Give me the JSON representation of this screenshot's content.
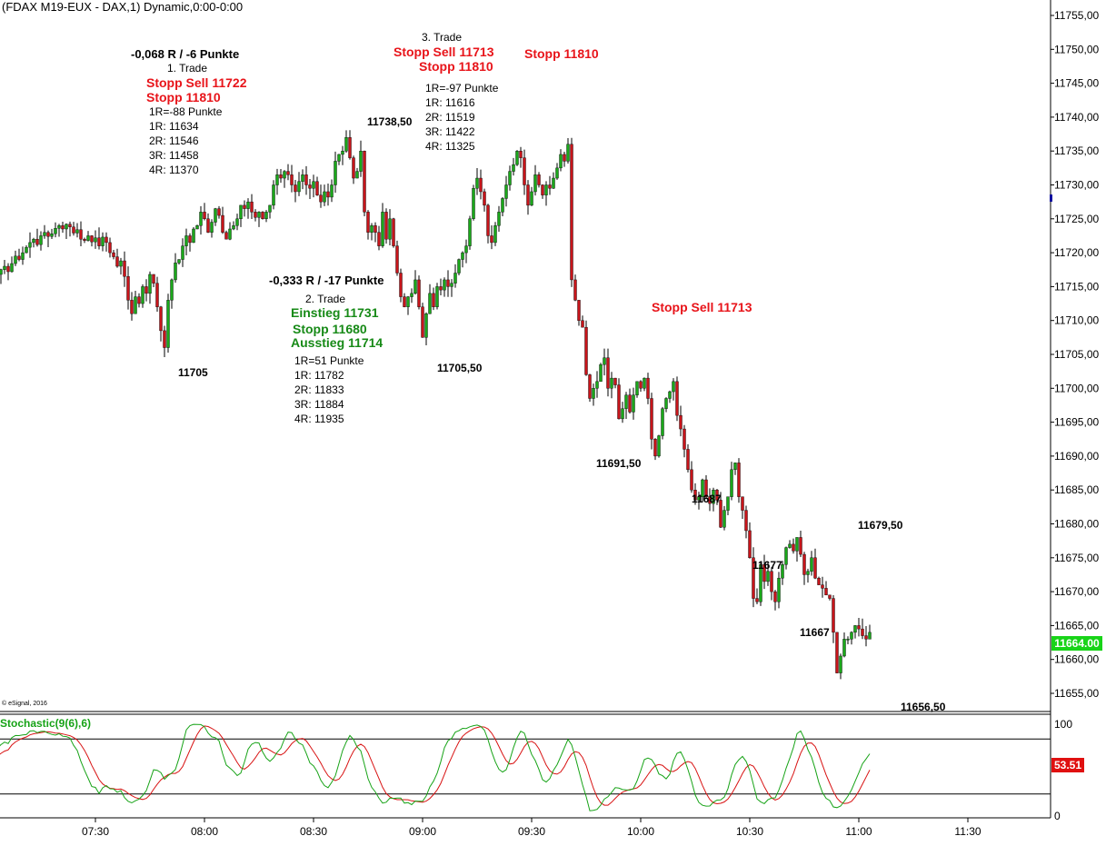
{
  "header": {
    "instrument": "(FDAX M19-EUX - DAX,1) Dynamic,0:00-0:00"
  },
  "copyright": "© eSignal, 2016",
  "colors": {
    "up": "#1aa81a",
    "down": "#c8141a",
    "annotation_red": "#e8141a",
    "annotation_green": "#178a17",
    "stoch_k": "#17a317",
    "stoch_d": "#d81212",
    "current_bg": "#18d418",
    "stoch_value_bg": "#e01010"
  },
  "current_price": "11664.00",
  "stochastic": {
    "label": "Stochastic(9(6),6)",
    "value": "53.51",
    "axis": [
      "100",
      "0"
    ]
  },
  "annotations": {
    "trade1": {
      "result": "-0,068 R / -6 Punkte",
      "title": "1. Trade",
      "stop_sell": "Stopp Sell 11722",
      "stopp": "Stopp 11810",
      "r_def": "1R=-88 Punkte",
      "r1": "1R: 11634",
      "r2": "2R: 11546",
      "r3": "3R: 11458",
      "r4": "4R: 11370"
    },
    "trade2": {
      "result": "-0,333 R / -17 Punkte",
      "title": "2. Trade",
      "einstieg": "Einstieg 11731",
      "stopp": "Stopp 11680",
      "ausstieg": "Ausstieg 11714",
      "r_def": "1R=51 Punkte",
      "r1": "1R: 11782",
      "r2": "2R: 11833",
      "r3": "3R: 11884",
      "r4": "4R: 11935"
    },
    "trade3": {
      "title": "3. Trade",
      "stop_sell": "Stopp Sell 11713",
      "stopp": "Stopp 11810",
      "r_def": "1R=-97 Punkte",
      "r1": "1R: 11616",
      "r2": "2R: 11519",
      "r3": "3R: 11422",
      "r4": "4R: 11325"
    },
    "stopp_11810": "Stopp 11810",
    "stopp_sell_11713": "Stopp Sell 11713"
  },
  "price_levels": [
    "11705",
    "11738,50",
    "11705,50",
    "11691,50",
    "11687",
    "11677",
    "11667",
    "11679,50",
    "11656,50"
  ],
  "chart_data": {
    "type": "candlestick",
    "ylim": [
      11653,
      11758
    ],
    "yticks": [
      "11755,00",
      "11750,00",
      "11745,00",
      "11740,00",
      "11735,00",
      "11730,00",
      "11725,00",
      "11720,00",
      "11715,00",
      "11710,00",
      "11705,00",
      "11700,00",
      "11695,00",
      "11690,00",
      "11685,00",
      "11680,00",
      "11675,00",
      "11670,00",
      "11665,00",
      "11660,00",
      "11655,00"
    ],
    "xticks": [
      "07:30",
      "08:00",
      "08:30",
      "09:00",
      "09:30",
      "10:00",
      "10:30",
      "11:00",
      "11:30"
    ],
    "start_time": "07:01",
    "interval_minutes": 1,
    "close": [
      11715.0,
      11716.2,
      11716.8,
      11717.5,
      11718.0,
      11717.2,
      11718.4,
      11719.5,
      11719.0,
      11720.0,
      11720.8,
      11721.5,
      11722.0,
      11721.2,
      11722.5,
      11723.0,
      11722.4,
      11722.8,
      11723.6,
      11724.0,
      11723.5,
      11724.2,
      11723.8,
      11722.9,
      11723.4,
      11722.0,
      11721.8,
      11722.5,
      11721.6,
      11722.2,
      11721.0,
      11722.3,
      11721.5,
      11720.0,
      11719.4,
      11718.0,
      11718.8,
      11716.5,
      11713.0,
      11711.0,
      11713.5,
      11712.5,
      11715.0,
      11714.0,
      11716.8,
      11715.5,
      11712.0,
      11708.5,
      11706.0,
      11713.0,
      11716.0,
      11718.5,
      11719.0,
      11721.0,
      11722.5,
      11721.5,
      11723.5,
      11724.0,
      11726.0,
      11725.0,
      11723.0,
      11724.5,
      11726.5,
      11725.5,
      11723.0,
      11722.0,
      11723.5,
      11724.0,
      11725.0,
      11727.0,
      11726.5,
      11727.5,
      11726.0,
      11725.2,
      11726.0,
      11725.0,
      11726.0,
      11727.0,
      11730.0,
      11731.5,
      11731.0,
      11732.0,
      11731.5,
      11730.0,
      11729.0,
      11730.5,
      11731.5,
      11730.0,
      11729.5,
      11730.5,
      11728.5,
      11727.5,
      11729.0,
      11728.2,
      11730.0,
      11733.5,
      11734.5,
      11735.0,
      11737.0,
      11734.0,
      11731.0,
      11732.0,
      11735.0,
      11726.0,
      11723.0,
      11724.0,
      11723.0,
      11721.0,
      11726.0,
      11722.0,
      11725.0,
      11721.0,
      11717.0,
      11713.5,
      11712.0,
      11713.5,
      11714.0,
      11716.0,
      11712.0,
      11707.5,
      11711.0,
      11714.0,
      11712.0,
      11715.0,
      11714.5,
      11716.0,
      11715.0,
      11715.5,
      11717.0,
      11719.0,
      11720.0,
      11721.0,
      11725.0,
      11729.5,
      11731.0,
      11729.0,
      11727.0,
      11722.5,
      11721.5,
      11724.0,
      11726.0,
      11728.0,
      11730.0,
      11732.0,
      11733.0,
      11735.0,
      11734.0,
      11730.0,
      11727.0,
      11729.0,
      11731.5,
      11730.0,
      11728.5,
      11730.0,
      11729.5,
      11731.0,
      11732.5,
      11734.5,
      11733.5,
      11736.0,
      11716.0,
      11713.0,
      11710.0,
      11709.0,
      11702.0,
      11698.5,
      11700.0,
      11701.0,
      11703.5,
      11704.5,
      11700.0,
      11701.5,
      11700.5,
      11695.5,
      11697.0,
      11699.0,
      11696.5,
      11699.0,
      11701.0,
      11700.0,
      11701.5,
      11698.5,
      11692.5,
      11690.0,
      11693.0,
      11697.0,
      11698.5,
      11699.5,
      11701.0,
      11696.0,
      11694.0,
      11691.0,
      11688.0,
      11685.0,
      11683.5,
      11684.0,
      11686.5,
      11684.0,
      11683.0,
      11685.0,
      11683.5,
      11679.5,
      11682.0,
      11684.0,
      11688.0,
      11689.0,
      11684.0,
      11682.0,
      11679.0,
      11675.0,
      11669.0,
      11668.5,
      11674.0,
      11671.5,
      11673.0,
      11670.0,
      11668.5,
      11672.0,
      11674.0,
      11676.5,
      11677.0,
      11676.0,
      11678.0,
      11675.5,
      11672.5,
      11673.0,
      11675.0,
      11672.0,
      11671.0,
      11670.5,
      11669.5,
      11669.0,
      11664.0,
      11658.0,
      11660.5,
      11663.0,
      11663.0,
      11664.0,
      11665.0,
      11664.5,
      11663.5,
      11663.0,
      11664.0
    ]
  }
}
